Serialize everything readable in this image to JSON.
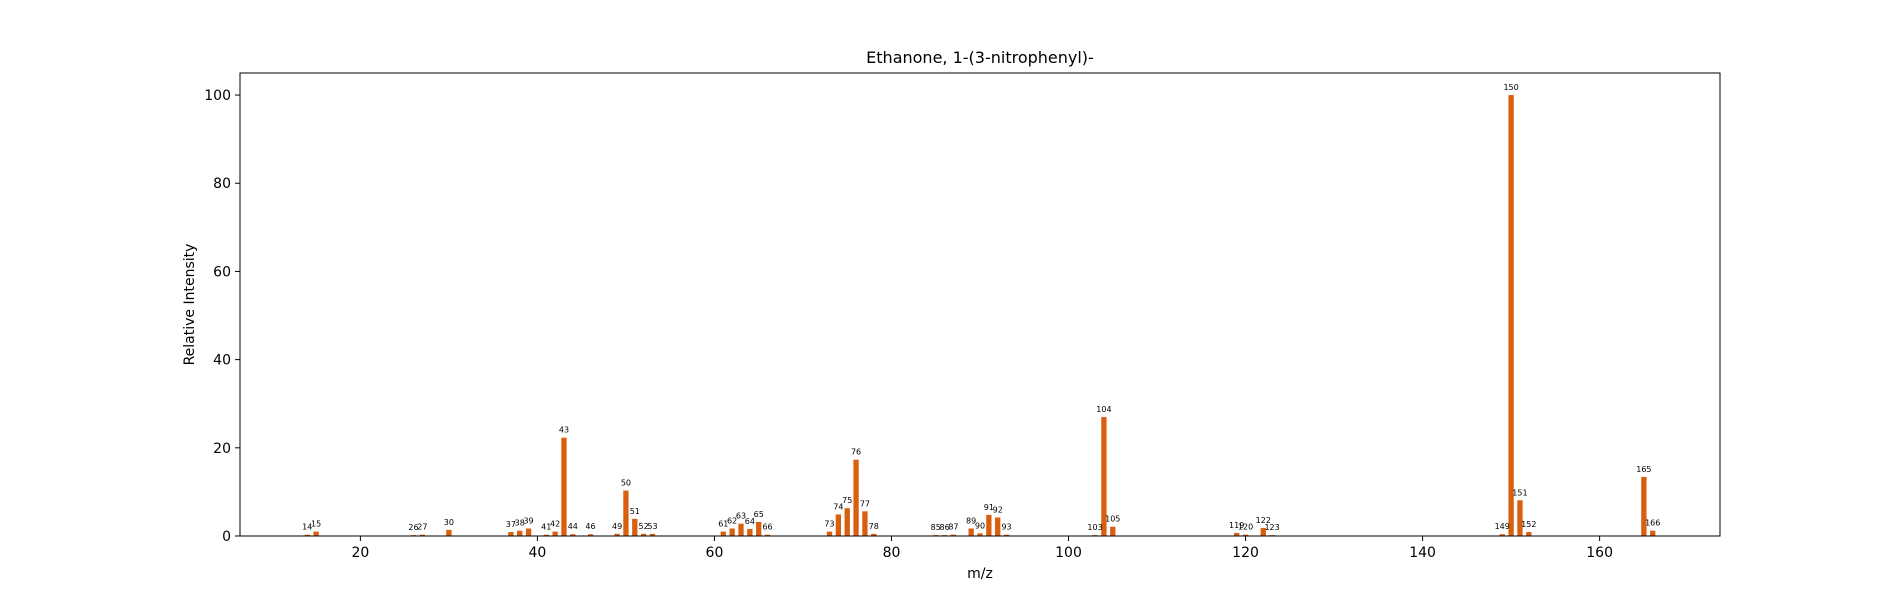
{
  "chart_data": {
    "type": "bar",
    "title": "Ethanone, 1-(3-nitrophenyl)-",
    "xlabel": "m/z",
    "ylabel": "Relative Intensity",
    "xlim": [
      6.4,
      173.6
    ],
    "ylim": [
      0,
      105
    ],
    "xticks": [
      20,
      40,
      60,
      80,
      100,
      120,
      140,
      160
    ],
    "yticks": [
      0,
      20,
      40,
      60,
      80,
      100
    ],
    "bar_color": "#d95f0e",
    "grid": false,
    "peaks": [
      {
        "x": 14,
        "y": 0.3
      },
      {
        "x": 15,
        "y": 1.0
      },
      {
        "x": 26,
        "y": 0.2
      },
      {
        "x": 27,
        "y": 0.3
      },
      {
        "x": 30,
        "y": 1.4
      },
      {
        "x": 37,
        "y": 0.9
      },
      {
        "x": 38,
        "y": 1.2
      },
      {
        "x": 39,
        "y": 1.7
      },
      {
        "x": 41,
        "y": 0.3
      },
      {
        "x": 42,
        "y": 1.0
      },
      {
        "x": 43,
        "y": 22.3
      },
      {
        "x": 44,
        "y": 0.4
      },
      {
        "x": 46,
        "y": 0.4
      },
      {
        "x": 49,
        "y": 0.5
      },
      {
        "x": 50,
        "y": 10.3
      },
      {
        "x": 51,
        "y": 3.9
      },
      {
        "x": 52,
        "y": 0.5
      },
      {
        "x": 53,
        "y": 0.5
      },
      {
        "x": 61,
        "y": 1.0
      },
      {
        "x": 62,
        "y": 1.7
      },
      {
        "x": 63,
        "y": 2.8
      },
      {
        "x": 64,
        "y": 1.6
      },
      {
        "x": 65,
        "y": 3.2
      },
      {
        "x": 66,
        "y": 0.3
      },
      {
        "x": 73,
        "y": 1.0
      },
      {
        "x": 74,
        "y": 4.9
      },
      {
        "x": 75,
        "y": 6.3
      },
      {
        "x": 76,
        "y": 17.3
      },
      {
        "x": 77,
        "y": 5.6
      },
      {
        "x": 78,
        "y": 0.5
      },
      {
        "x": 85,
        "y": 0.2
      },
      {
        "x": 86,
        "y": 0.2
      },
      {
        "x": 87,
        "y": 0.3
      },
      {
        "x": 89,
        "y": 1.7
      },
      {
        "x": 90,
        "y": 0.6
      },
      {
        "x": 91,
        "y": 4.8
      },
      {
        "x": 92,
        "y": 4.2
      },
      {
        "x": 93,
        "y": 0.3
      },
      {
        "x": 103,
        "y": 0.2
      },
      {
        "x": 104,
        "y": 27.0
      },
      {
        "x": 105,
        "y": 2.1
      },
      {
        "x": 119,
        "y": 0.7
      },
      {
        "x": 120,
        "y": 0.3
      },
      {
        "x": 122,
        "y": 1.8
      },
      {
        "x": 123,
        "y": 0.2
      },
      {
        "x": 149,
        "y": 0.4
      },
      {
        "x": 150,
        "y": 100.0
      },
      {
        "x": 151,
        "y": 8.1
      },
      {
        "x": 152,
        "y": 0.9
      },
      {
        "x": 165,
        "y": 13.4
      },
      {
        "x": 166,
        "y": 1.2
      }
    ]
  }
}
